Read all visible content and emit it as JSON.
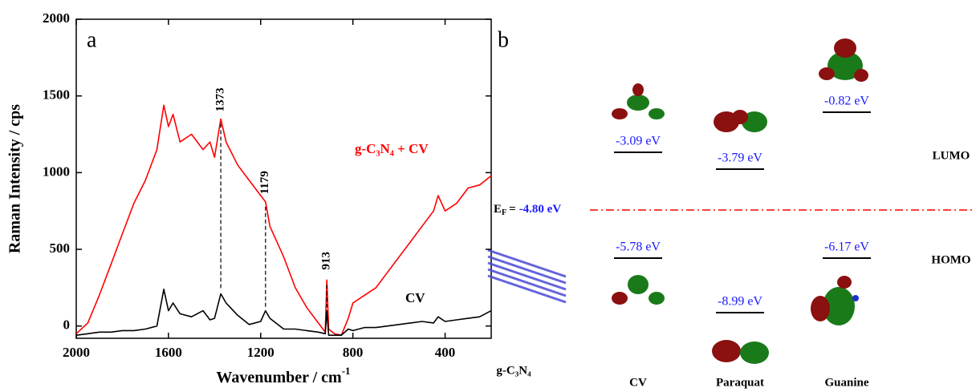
{
  "chart_data": {
    "type": "line",
    "panel_label": "a",
    "ylabel": "Raman Intensity / cps",
    "xlabel": "Wavenumber / cm",
    "xlabel_sup": "-1",
    "xlim": [
      2000,
      200
    ],
    "xticks": [
      2000,
      1600,
      1200,
      800,
      400
    ],
    "ylim": [
      -80,
      2000
    ],
    "yticks": [
      0,
      500,
      1000,
      1500,
      2000
    ],
    "x": [
      2000,
      1950,
      1900,
      1850,
      1800,
      1750,
      1700,
      1650,
      1620,
      1600,
      1580,
      1550,
      1500,
      1450,
      1420,
      1400,
      1373,
      1350,
      1300,
      1250,
      1200,
      1179,
      1160,
      1100,
      1050,
      1000,
      950,
      920,
      913,
      905,
      880,
      850,
      820,
      800,
      750,
      700,
      650,
      600,
      550,
      500,
      450,
      430,
      400,
      350,
      300,
      250,
      200
    ],
    "series": [
      {
        "name": "g-C₃N₄ + CV",
        "color": "#ff0000",
        "values": [
          -50,
          20,
          200,
          400,
          600,
          800,
          950,
          1150,
          1440,
          1300,
          1380,
          1200,
          1250,
          1150,
          1200,
          1100,
          1350,
          1200,
          1050,
          950,
          850,
          810,
          650,
          450,
          250,
          120,
          20,
          -40,
          300,
          -20,
          -50,
          -60,
          50,
          150,
          200,
          250,
          350,
          450,
          550,
          650,
          750,
          850,
          750,
          800,
          900,
          920,
          980
        ]
      },
      {
        "name": "CV",
        "color": "#000000",
        "values": [
          -60,
          -50,
          -40,
          -40,
          -30,
          -30,
          -20,
          0,
          240,
          100,
          150,
          80,
          60,
          100,
          40,
          50,
          210,
          150,
          70,
          10,
          30,
          100,
          50,
          -20,
          -20,
          -30,
          -40,
          -50,
          100,
          -60,
          -60,
          -60,
          -20,
          -30,
          -10,
          -10,
          0,
          10,
          20,
          30,
          20,
          60,
          30,
          40,
          50,
          60,
          100
        ]
      }
    ],
    "peaks": [
      1373,
      1179,
      913
    ]
  },
  "diagram": {
    "panel_label": "b",
    "fermi": {
      "symbol": "E",
      "subscript": "F",
      "equals": "=",
      "value": "-4.80 eV"
    },
    "lumo_label": "LUMO",
    "homo_label": "HOMO",
    "substrate_label": "g-C₃N₄",
    "molecules": [
      {
        "name": "CV",
        "lumo": "-3.09 eV",
        "homo": "-5.78 eV"
      },
      {
        "name": "Paraquat",
        "lumo": "-3.79 eV",
        "homo": "-8.99 eV"
      },
      {
        "name": "Guanine",
        "lumo": "-0.82 eV",
        "homo": "-6.17 eV"
      }
    ]
  }
}
